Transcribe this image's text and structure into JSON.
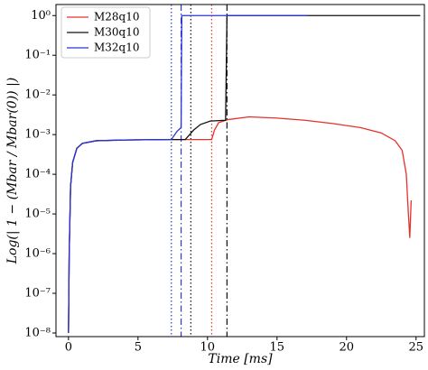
{
  "chart_data": {
    "type": "line",
    "xlabel": "Time [ms]",
    "ylabel": "Log(| 1 − (Mbar / Mbar(0)) |)",
    "xlim": [
      -0.9,
      25.6
    ],
    "ylim": [
      8.1e-09,
      1.9
    ],
    "log_y": true,
    "xticks": [
      0,
      5,
      10,
      15,
      20,
      25
    ],
    "yticks": [
      {
        "value": 1e-08,
        "label": "10⁻⁸"
      },
      {
        "value": 1e-07,
        "label": "10⁻⁷"
      },
      {
        "value": 1e-06,
        "label": "10⁻⁶"
      },
      {
        "value": 1e-05,
        "label": "10⁻⁵"
      },
      {
        "value": 0.0001,
        "label": "10⁻⁴"
      },
      {
        "value": 0.001,
        "label": "10⁻³"
      },
      {
        "value": 0.01,
        "label": "10⁻²"
      },
      {
        "value": 0.1,
        "label": "10⁻¹"
      },
      {
        "value": 1,
        "label": "10⁰"
      }
    ],
    "legend": "upper left",
    "series": [
      {
        "name": "M28q10",
        "color": "#e8302a",
        "x": [
          0,
          0.05,
          0.15,
          0.3,
          0.6,
          1,
          2,
          4,
          7,
          10.3,
          10.5,
          10.8,
          11.5,
          13,
          15,
          17,
          19,
          21,
          22.5,
          23.5,
          24,
          24.3,
          24.45,
          24.55,
          24.65
        ],
        "values": [
          1e-08,
          1e-06,
          5e-05,
          0.0002,
          0.00045,
          0.0006,
          0.0007,
          0.00073,
          0.00075,
          0.00075,
          0.0013,
          0.002,
          0.0024,
          0.0028,
          0.0026,
          0.0023,
          0.0019,
          0.0015,
          0.0011,
          0.0007,
          0.0004,
          0.0001,
          1e-05,
          2.5e-06,
          2.2e-05
        ]
      },
      {
        "name": "M30q10",
        "color": "#111111",
        "x": [
          0,
          0.05,
          0.15,
          0.3,
          0.6,
          1,
          2,
          4,
          7,
          8.4,
          9,
          9.5,
          10.2,
          11.3,
          11.4,
          25.3
        ],
        "values": [
          1e-08,
          1e-06,
          5e-05,
          0.0002,
          0.00045,
          0.0006,
          0.0007,
          0.00073,
          0.00075,
          0.00075,
          0.0013,
          0.0018,
          0.0022,
          0.0023,
          1,
          1
        ]
      },
      {
        "name": "M32q10",
        "color": "#2a35d8",
        "x": [
          0,
          0.05,
          0.15,
          0.3,
          0.6,
          1,
          2,
          4,
          7,
          7.4,
          7.8,
          8.1,
          8.15,
          17.2
        ],
        "values": [
          1e-08,
          1e-06,
          5e-05,
          0.0002,
          0.00045,
          0.0006,
          0.0007,
          0.00073,
          0.00075,
          0.00075,
          0.0012,
          0.0015,
          1,
          1
        ]
      }
    ],
    "vlines": [
      {
        "x": 7.4,
        "color": "#2a35d8",
        "style": "dotted"
      },
      {
        "x": 8.1,
        "color": "#2a35d8",
        "style": "dashdot"
      },
      {
        "x": 8.8,
        "color": "#111111",
        "style": "dotted"
      },
      {
        "x": 10.3,
        "color": "#e8302a",
        "style": "dotted"
      },
      {
        "x": 11.4,
        "color": "#111111",
        "style": "dashdot"
      }
    ]
  }
}
